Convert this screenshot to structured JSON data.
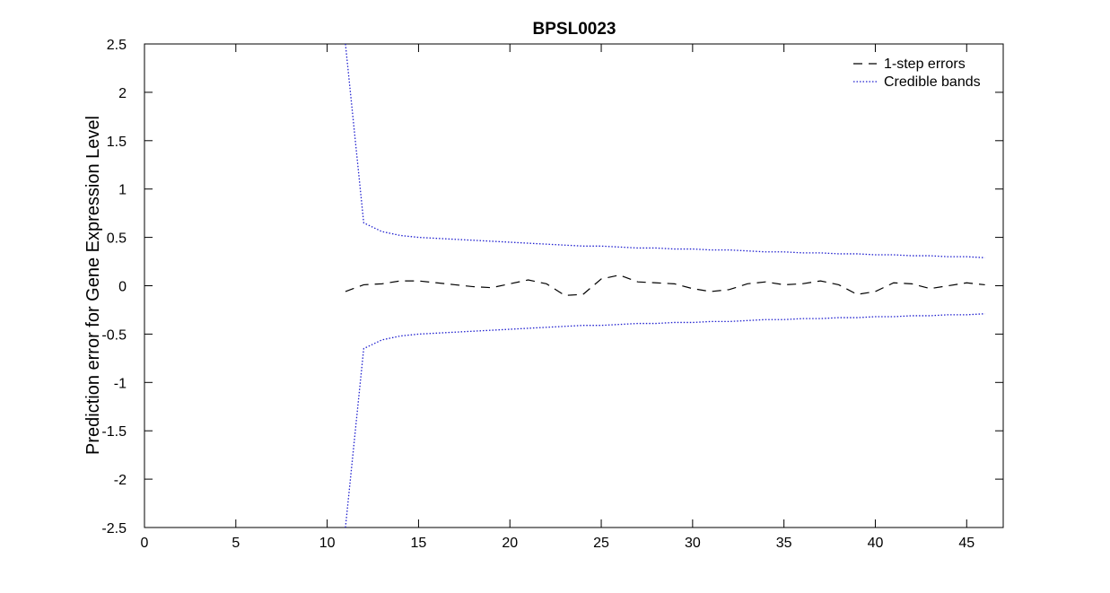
{
  "chart_data": {
    "type": "line",
    "title": "BPSL0023",
    "xlabel": "",
    "ylabel": "Prediction error for Gene Expression Level",
    "xlim": [
      0,
      47
    ],
    "ylim": [
      -2.5,
      2.5
    ],
    "xticks": [
      0,
      5,
      10,
      15,
      20,
      25,
      30,
      35,
      40,
      45
    ],
    "yticks": [
      -2.5,
      -2,
      -1.5,
      -1,
      -0.5,
      0,
      0.5,
      1,
      1.5,
      2,
      2.5
    ],
    "ytick_labels": [
      "-2.5",
      "-2",
      "-1.5",
      "-1",
      "-0.5",
      "0",
      "0.5",
      "1",
      "1.5",
      "2",
      "2.5"
    ],
    "xtick_labels": [
      "0",
      "5",
      "10",
      "15",
      "20",
      "25",
      "30",
      "35",
      "40",
      "45"
    ],
    "grid": false,
    "legend_position": "top-right",
    "series": [
      {
        "name": "1-step errors",
        "color": "#000000",
        "style": "dashed",
        "x": [
          11,
          12,
          13,
          14,
          15,
          16,
          17,
          18,
          19,
          20,
          21,
          22,
          23,
          24,
          25,
          26,
          27,
          28,
          29,
          30,
          31,
          32,
          33,
          34,
          35,
          36,
          37,
          38,
          39,
          40,
          41,
          42,
          43,
          44,
          45,
          46
        ],
        "y": [
          -0.06,
          0.01,
          0.02,
          0.05,
          0.05,
          0.03,
          0.01,
          -0.01,
          -0.02,
          0.02,
          0.06,
          0.02,
          -0.1,
          -0.09,
          0.07,
          0.11,
          0.04,
          0.03,
          0.02,
          -0.03,
          -0.06,
          -0.04,
          0.02,
          0.04,
          0.01,
          0.02,
          0.05,
          0.01,
          -0.09,
          -0.06,
          0.03,
          0.02,
          -0.03,
          0.0,
          0.03,
          0.01
        ]
      },
      {
        "name": "Credible bands",
        "color": "#1f1fcf",
        "style": "dotted",
        "x": [
          11,
          12,
          13,
          14,
          15,
          16,
          17,
          18,
          19,
          20,
          21,
          22,
          23,
          24,
          25,
          26,
          27,
          28,
          29,
          30,
          31,
          32,
          33,
          34,
          35,
          36,
          37,
          38,
          39,
          40,
          41,
          42,
          43,
          44,
          45,
          46
        ],
        "y": [
          2.5,
          0.65,
          0.56,
          0.52,
          0.5,
          0.49,
          0.48,
          0.47,
          0.46,
          0.45,
          0.44,
          0.43,
          0.42,
          0.41,
          0.41,
          0.4,
          0.39,
          0.39,
          0.38,
          0.38,
          0.37,
          0.37,
          0.36,
          0.35,
          0.35,
          0.34,
          0.34,
          0.33,
          0.33,
          0.32,
          0.32,
          0.31,
          0.31,
          0.3,
          0.3,
          0.29
        ]
      },
      {
        "name": "",
        "color": "#1f1fcf",
        "style": "dotted",
        "x": [
          11,
          12,
          13,
          14,
          15,
          16,
          17,
          18,
          19,
          20,
          21,
          22,
          23,
          24,
          25,
          26,
          27,
          28,
          29,
          30,
          31,
          32,
          33,
          34,
          35,
          36,
          37,
          38,
          39,
          40,
          41,
          42,
          43,
          44,
          45,
          46
        ],
        "y": [
          -2.5,
          -0.65,
          -0.56,
          -0.52,
          -0.5,
          -0.49,
          -0.48,
          -0.47,
          -0.46,
          -0.45,
          -0.44,
          -0.43,
          -0.42,
          -0.41,
          -0.41,
          -0.4,
          -0.39,
          -0.39,
          -0.38,
          -0.38,
          -0.37,
          -0.37,
          -0.36,
          -0.35,
          -0.35,
          -0.34,
          -0.34,
          -0.33,
          -0.33,
          -0.32,
          -0.32,
          -0.31,
          -0.31,
          -0.3,
          -0.3,
          -0.29
        ]
      }
    ],
    "legend": [
      {
        "label": "1-step errors",
        "color": "#000000",
        "style": "dashed"
      },
      {
        "label": "Credible bands",
        "color": "#1f1fcf",
        "style": "dotted"
      }
    ]
  }
}
